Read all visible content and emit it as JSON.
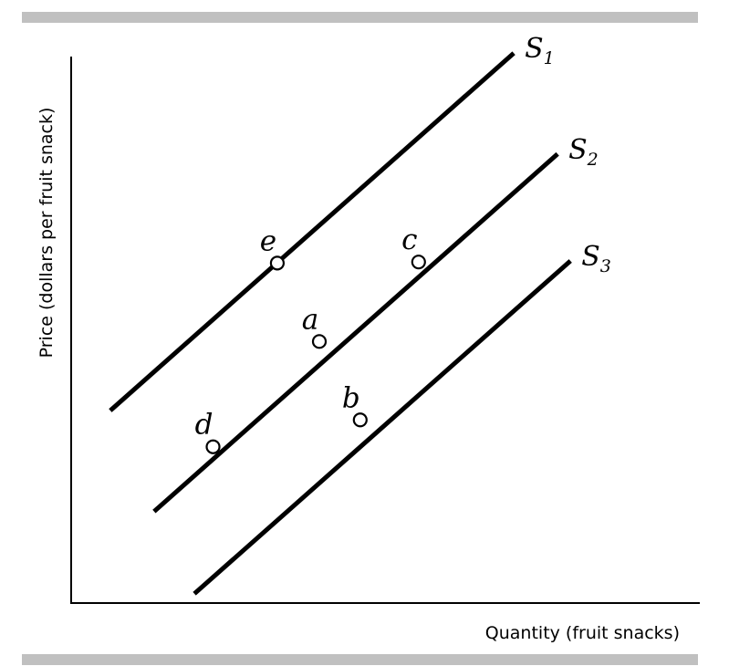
{
  "colors": {
    "line": "#000000",
    "band": "#c0c0c0",
    "point_fill": "#ffffff",
    "background": "#ffffff"
  },
  "chart_data": {
    "type": "line",
    "title": "",
    "xlabel": "Quantity (fruit snacks)",
    "ylabel": "Price (dollars per fruit snack)",
    "xlim": [
      0,
      100
    ],
    "ylim": [
      0,
      100
    ],
    "ticks": "none",
    "grid": false,
    "series": [
      {
        "name": "S",
        "subscript": "1",
        "x": [
          6.7,
          75.8
        ],
        "y": [
          35.1,
          100.3
        ]
      },
      {
        "name": "S",
        "subscript": "2",
        "x": [
          14.2,
          83.3
        ],
        "y": [
          16.7,
          81.9
        ]
      },
      {
        "name": "S",
        "subscript": "3",
        "x": [
          21.1,
          85.5
        ],
        "y": [
          1.7,
          62.4
        ]
      }
    ],
    "points": [
      {
        "label": "e",
        "x": 35.3,
        "y": 62.0
      },
      {
        "label": "c",
        "x": 59.5,
        "y": 62.2
      },
      {
        "label": "a",
        "x": 42.5,
        "y": 47.7
      },
      {
        "label": "b",
        "x": 49.5,
        "y": 33.4
      },
      {
        "label": "d",
        "x": 24.3,
        "y": 28.5
      }
    ]
  }
}
